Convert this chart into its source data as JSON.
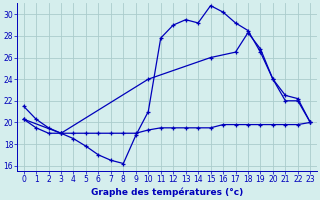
{
  "xlabel": "Graphe des températures (°c)",
  "xlim": [
    -0.5,
    23.5
  ],
  "ylim": [
    15.5,
    31.0
  ],
  "yticks": [
    16,
    18,
    20,
    22,
    24,
    26,
    28,
    30
  ],
  "xticks": [
    0,
    1,
    2,
    3,
    4,
    5,
    6,
    7,
    8,
    9,
    10,
    11,
    12,
    13,
    14,
    15,
    16,
    17,
    18,
    19,
    20,
    21,
    22,
    23
  ],
  "bg_color": "#d5eeed",
  "grid_color": "#aacccc",
  "line_color": "#0000bb",
  "lines": [
    {
      "x": [
        0,
        1,
        2,
        3,
        4,
        5,
        6,
        7,
        8,
        9,
        10,
        11,
        12,
        13,
        14,
        15,
        16,
        17,
        18,
        19,
        20,
        21,
        22,
        23
      ],
      "y": [
        21.5,
        20.3,
        19.5,
        19.0,
        18.5,
        17.8,
        17.0,
        16.5,
        16.2,
        18.8,
        21.0,
        27.8,
        29.0,
        29.5,
        29.2,
        30.8,
        30.2,
        29.2,
        28.5,
        26.5,
        24.0,
        22.5,
        22.2,
        20.0
      ]
    },
    {
      "x": [
        0,
        3,
        10,
        15,
        17,
        18,
        19,
        20,
        21,
        22,
        23
      ],
      "y": [
        20.3,
        19.0,
        24.0,
        26.0,
        26.5,
        28.3,
        26.8,
        24.0,
        22.0,
        22.0,
        20.0
      ]
    },
    {
      "x": [
        0,
        1,
        2,
        3,
        4,
        5,
        6,
        7,
        8,
        9,
        10,
        11,
        12,
        13,
        14,
        15,
        16,
        17,
        18,
        19,
        20,
        21,
        22,
        23
      ],
      "y": [
        20.3,
        19.5,
        19.0,
        19.0,
        19.0,
        19.0,
        19.0,
        19.0,
        19.0,
        19.0,
        19.3,
        19.5,
        19.5,
        19.5,
        19.5,
        19.5,
        19.8,
        19.8,
        19.8,
        19.8,
        19.8,
        19.8,
        19.8,
        20.0
      ]
    }
  ]
}
